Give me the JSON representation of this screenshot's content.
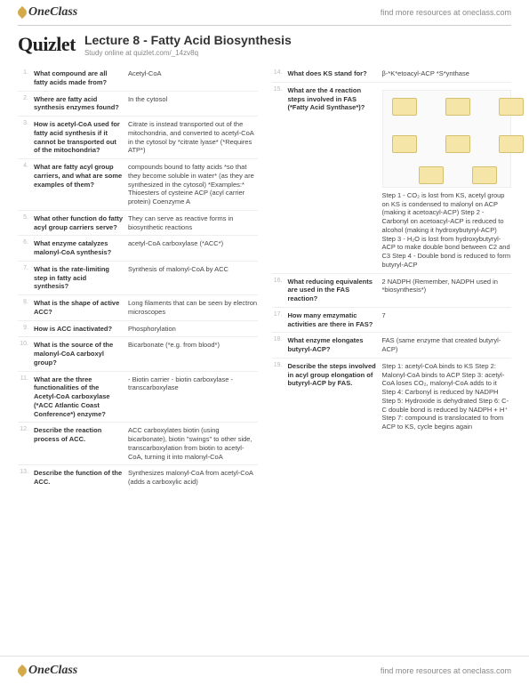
{
  "brand": "OneClass",
  "resources_text": "find more resources at oneclass.com",
  "quizlet": "Quizlet",
  "title": "Lecture 8 - Fatty Acid Biosynthesis",
  "subtitle": "Study online at quizlet.com/_14zv8q",
  "left": [
    {
      "n": "1.",
      "q": "What compound are all fatty acids made from?",
      "a": "Acetyl-CoA"
    },
    {
      "n": "2.",
      "q": "Where are fatty acid synthesis enzymes found?",
      "a": "In the cytosol"
    },
    {
      "n": "3.",
      "q": "How is acetyl-CoA used for fatty acid synthesis if it cannot be transported out of the mitochondria?",
      "a": "Citrate is instead transported out of the mitochondria, and converted to acetyl-CoA in the cytosol by *citrate lyase* (*Requires ATP*)"
    },
    {
      "n": "4.",
      "q": "What are fatty acyl group carriers, and what are some examples of them?",
      "a": "compounds bound to fatty acids *so that they become soluble in water* (as they are synthesized in the cytosol) *Examples:* Thioesters of cysteine ACP (acyl carrier protein) Coenzyme A"
    },
    {
      "n": "5.",
      "q": "What other function do fatty acyl group carriers serve?",
      "a": "They can serve as reactive forms in biosynthetic reactions"
    },
    {
      "n": "6.",
      "q": "What enzyme catalyzes malonyl-CoA synthesis?",
      "a": "acetyl-CoA carboxylase (*ACC*)"
    },
    {
      "n": "7.",
      "q": "What is the rate-limiting step in fatty acid synthesis?",
      "a": "Synthesis of malonyl-CoA by ACC"
    },
    {
      "n": "8.",
      "q": "What is the shape of active ACC?",
      "a": "Long filaments that can be seen by electron microscopes"
    },
    {
      "n": "9.",
      "q": "How is ACC inactivated?",
      "a": "Phosphorylation"
    },
    {
      "n": "10.",
      "q": "What is the source of the malonyl-CoA carboxyl group?",
      "a": "Bicarbonate (*e.g. from blood*)"
    },
    {
      "n": "11.",
      "q": "What are the three functionalities of the Acetyl-CoA carboxylase (*ACC Atlantic Coast Conference*) enzyme?",
      "a": "- Biotin carrier - biotin carboxylase - transcarboxylase"
    },
    {
      "n": "12.",
      "q": "Describe the reaction process of ACC.",
      "a": "ACC carboxylates biotin (using bicarbonate), biotin \"swings\" to other side, transcarboxylation from biotin to acetyl-CoA, turning it into malonyl-CoA"
    },
    {
      "n": "13.",
      "q": "Describe the function of the ACC.",
      "a": "Synthesizes malonyl-CoA from acetyl-CoA (adds a carboxylic acid)"
    }
  ],
  "right": [
    {
      "n": "14.",
      "q": "What does KS stand for?",
      "a": "β-*K*etoacyl-ACP *S*ynthase"
    },
    {
      "n": "15.",
      "q": "What are the 4 reaction steps involved in FAS (*Fatty Acid Synthase*)?",
      "a": "",
      "diagram": true,
      "a2": "Step 1 - CO₂ is lost from KS, acetyl group on KS is condensed to malonyl on ACP (making it acetoacyl-ACP) Step 2 - Carbonyl on acetoacyl-ACP is reduced to alcohol (making it hydroxybutyryl-ACP) Step 3 - H₂O is lost from hydroxybutyryl-ACP to make double bond between C2 and C3 Step 4 - Double bond is reduced to form butyryl-ACP"
    },
    {
      "n": "16.",
      "q": "What reducing equivalents are used in the FAS reaction?",
      "a": "2 NADPH (Remember, NADPH used in *biosynthesis*)"
    },
    {
      "n": "17.",
      "q": "How many emzymatic activities are there in FAS?",
      "a": "7"
    },
    {
      "n": "18.",
      "q": "What enzyme elongates butyryl-ACP?",
      "a": "FAS (same enzyme that created butyryl-ACP)"
    },
    {
      "n": "19.",
      "q": "Describe the steps involved in acyl group elongation of butyryl-ACP by FAS.",
      "a": "Step 1: acetyl-CoA binds to KS Step 2: Malonyl-CoA binds to ACP Step 3: acetyl-CoA loses CO₂, malonyl-CoA adds to it Step 4: Carbonyl is reduced by NADPH Step 5: Hydroxide is dehydrated Step 6: C-C double bond is reduced by NADPH + H⁺ Step 7: compound is translocated to from ACP to KS, cycle begins again"
    }
  ],
  "colors": {
    "border": "#eeeeee",
    "num": "#bbbbbb",
    "text": "#333333",
    "leaf": "#d4a94a"
  }
}
